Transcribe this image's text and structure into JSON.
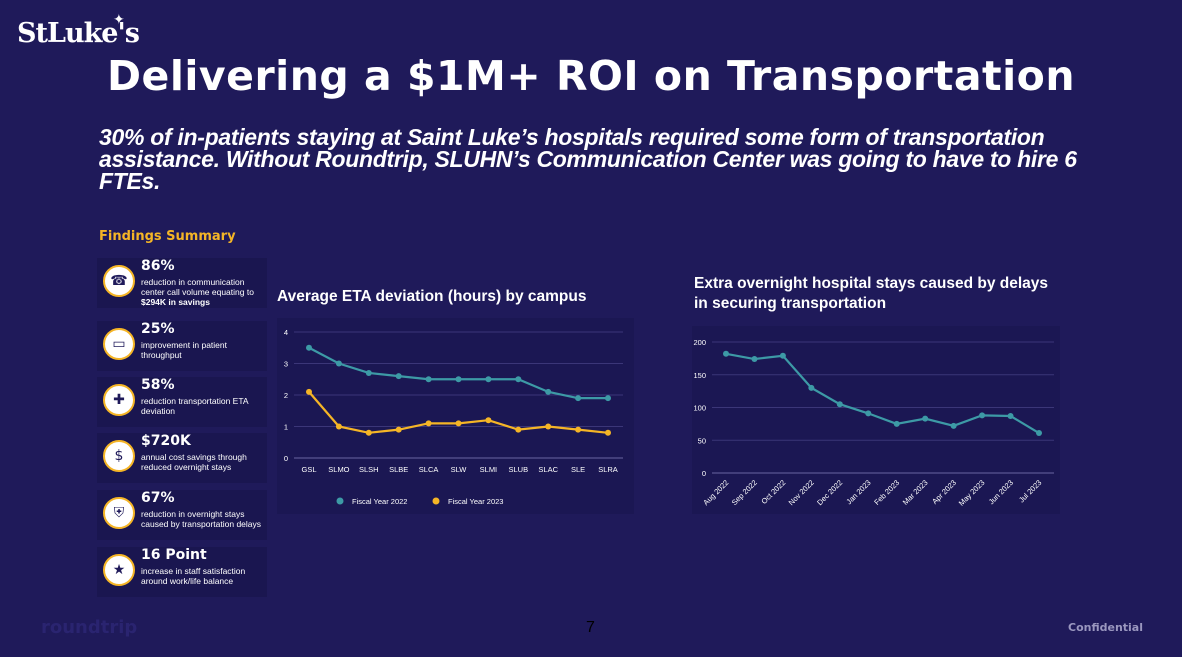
{
  "logo": {
    "text": "StLuke's"
  },
  "title": "Delivering a $1M+ ROI on Transportation",
  "subtitle": "30% of in-patients staying at Saint Luke’s hospitals required some form of transportation assistance. Without Roundtrip, SLUHN’s Communication Center was going to have to hire 6 FTEs.",
  "findings": {
    "title": "Findings Summary",
    "items": [
      {
        "icon": "phone-icon",
        "value": "86%",
        "desc": "reduction in communication center call volume equating to",
        "desc_bold": "$294K in savings"
      },
      {
        "icon": "ticket-icon",
        "value": "25%",
        "desc": "improvement in patient throughput",
        "desc_bold": ""
      },
      {
        "icon": "ambulance-icon",
        "value": "58%",
        "desc": "reduction transportation ETA deviation",
        "desc_bold": ""
      },
      {
        "icon": "money-hand-icon",
        "value": "$720K",
        "desc": "annual cost savings through reduced overnight stays",
        "desc_bold": ""
      },
      {
        "icon": "hospital-bed-icon",
        "value": "67%",
        "desc": "reduction in overnight stays caused by transportation delays",
        "desc_bold": ""
      },
      {
        "icon": "thumbs-up-stars-icon",
        "value": "16 Point",
        "desc": "increase in staff satisfaction around work/life balance",
        "desc_bold": ""
      }
    ]
  },
  "colors": {
    "teal": "#3d9aa6",
    "gold": "#f5b526",
    "background": "#1f1a5a",
    "accent": "#f5b526"
  },
  "chart_data": [
    {
      "type": "line",
      "title": "Average ETA deviation (hours) by campus",
      "categories": [
        "GSL",
        "SLMO",
        "SLSH",
        "SLBE",
        "SLCA",
        "SLW",
        "SLMI",
        "SLUB",
        "SLAC",
        "SLE",
        "SLRA"
      ],
      "series": [
        {
          "name": "Fiscal Year 2022",
          "color": "#3d9aa6",
          "values": [
            3.5,
            3.0,
            2.7,
            2.6,
            2.5,
            2.5,
            2.5,
            2.5,
            2.1,
            1.9,
            1.9
          ]
        },
        {
          "name": "Fiscal Year 2023",
          "color": "#f5b526",
          "values": [
            2.1,
            1.0,
            0.8,
            0.9,
            1.1,
            1.1,
            1.2,
            0.9,
            1.0,
            0.9,
            0.8
          ]
        }
      ],
      "ylim": [
        0,
        4
      ],
      "yticks": [
        0,
        1,
        2,
        3,
        4
      ],
      "grid": true,
      "legend": "bottom"
    },
    {
      "type": "line",
      "title": "Extra overnight hospital stays caused by delays in securing transportation",
      "categories": [
        "Aug 2022",
        "Sep 2022",
        "Oct 2022",
        "Nov 2022",
        "Dec 2022",
        "Jan 2023",
        "Feb 2023",
        "Mar 2023",
        "Apr 2023",
        "May 2023",
        "Jun 2023",
        "Jul 2023"
      ],
      "series": [
        {
          "name": "Extra overnight stays",
          "color": "#3d9aa6",
          "values": [
            182,
            174,
            179,
            130,
            105,
            91,
            75,
            83,
            72,
            88,
            87,
            61
          ]
        }
      ],
      "ylim": [
        0,
        200
      ],
      "yticks": [
        0,
        50,
        100,
        150,
        200
      ],
      "grid": true,
      "legend": "none"
    }
  ],
  "footer": {
    "page_number": "7",
    "brand": "roundtrip",
    "confidential": "Confidential"
  }
}
